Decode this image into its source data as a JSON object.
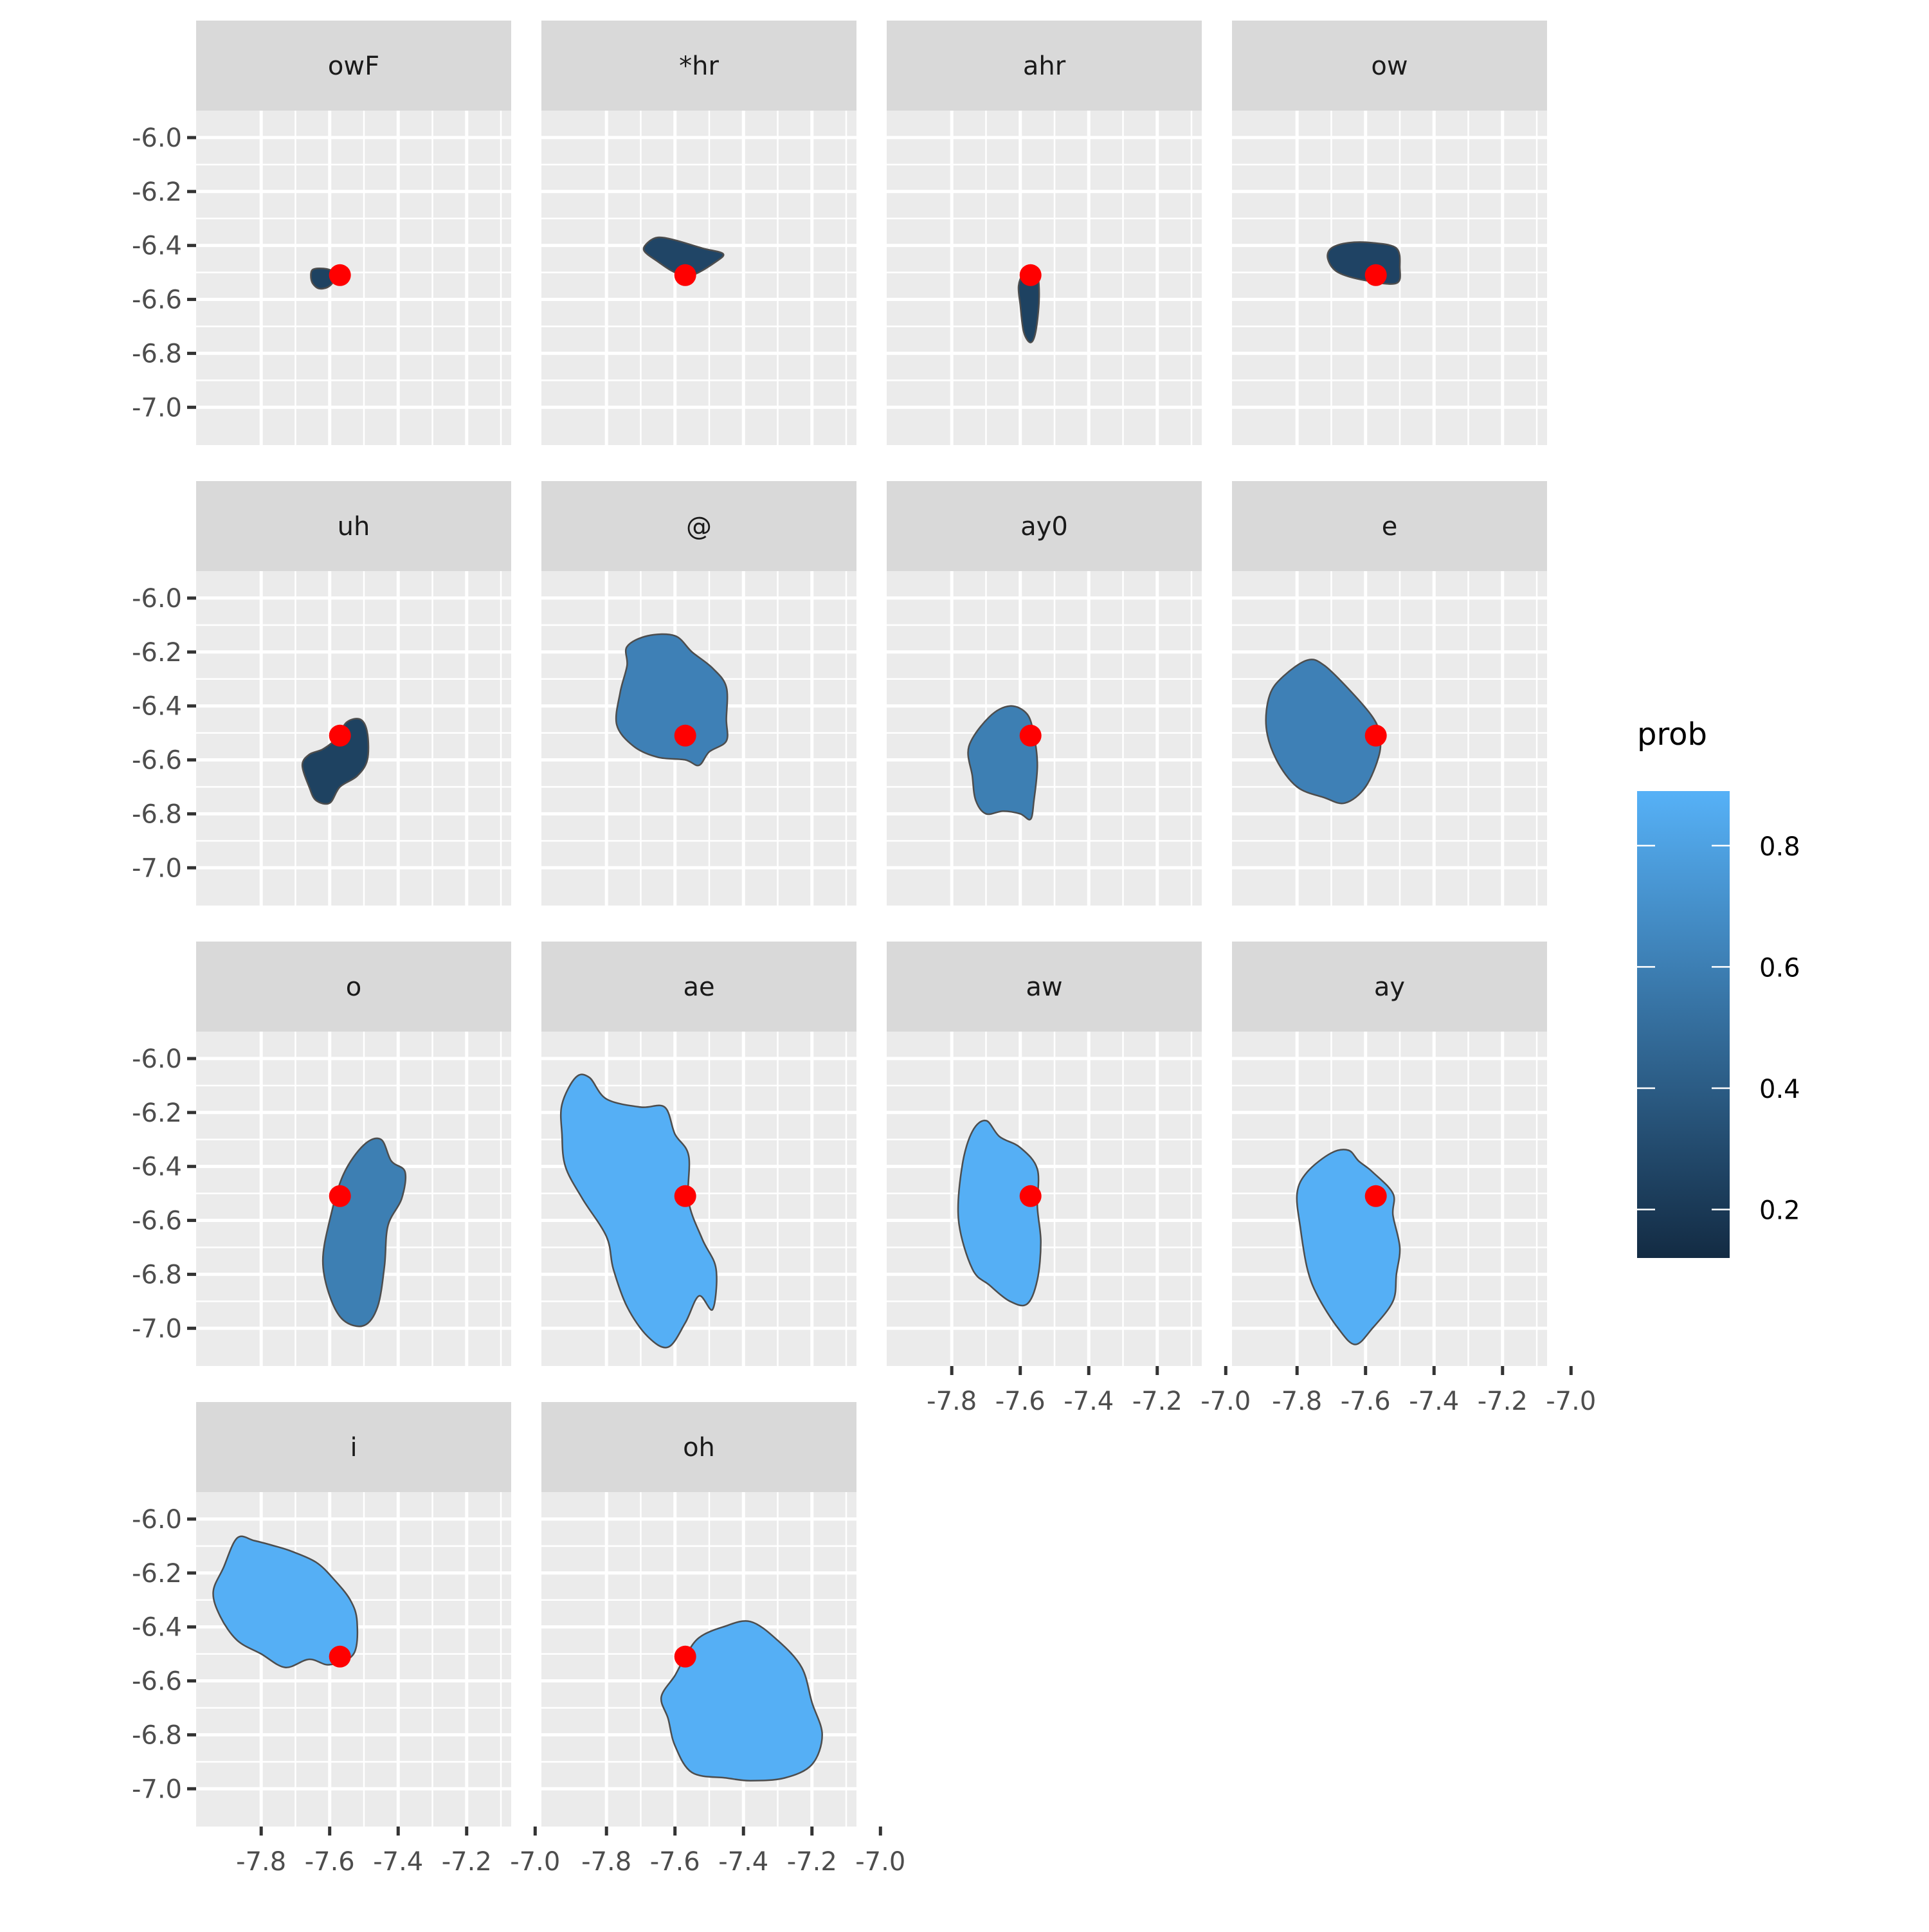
{
  "chart_data": {
    "type": "faceted-contour",
    "facet_titles": [
      "owF",
      "*hr",
      "ahr",
      "ow",
      "uh",
      "@",
      "ay0",
      "e",
      "o",
      "ae",
      "aw",
      "ay",
      "i",
      "oh"
    ],
    "x_ticks": [
      "-7.8",
      "-7.6",
      "-7.4",
      "-7.2",
      "-7.0"
    ],
    "x_tick_values": [
      -7.8,
      -7.6,
      -7.4,
      -7.2,
      -7.0
    ],
    "y_ticks": [
      "-6.0",
      "-6.2",
      "-6.4",
      "-6.6",
      "-6.8",
      "-7.0"
    ],
    "y_tick_values": [
      -6.0,
      -6.2,
      -6.4,
      -6.6,
      -6.8,
      -7.0
    ],
    "xlim": [
      -7.99,
      -7.07
    ],
    "ylim": [
      -7.14,
      -5.9
    ],
    "y_reversed": true,
    "grid": true,
    "legend": {
      "title": "prob",
      "position": "right",
      "ticks": [
        "0.2",
        "0.4",
        "0.6",
        "0.8"
      ],
      "tick_values": [
        0.2,
        0.4,
        0.6,
        0.8
      ],
      "range": [
        0.12,
        0.89
      ],
      "color_low": "#132B43",
      "color_high": "#56B1F7"
    },
    "point": {
      "x": -7.57,
      "y": -6.51,
      "color": "#FF0000"
    },
    "facets": [
      {
        "name": "owF",
        "prob": 0.25,
        "region": [
          [
            -7.65,
            -6.49
          ],
          [
            -7.63,
            -6.485
          ],
          [
            -7.6,
            -6.49
          ],
          [
            -7.58,
            -6.51
          ],
          [
            -7.6,
            -6.55
          ],
          [
            -7.63,
            -6.56
          ],
          [
            -7.65,
            -6.54
          ],
          [
            -7.655,
            -6.51
          ]
        ]
      },
      {
        "name": "*hr",
        "prob": 0.27,
        "region": [
          [
            -7.68,
            -6.39
          ],
          [
            -7.65,
            -6.37
          ],
          [
            -7.6,
            -6.38
          ],
          [
            -7.52,
            -6.41
          ],
          [
            -7.46,
            -6.43
          ],
          [
            -7.48,
            -6.46
          ],
          [
            -7.55,
            -6.51
          ],
          [
            -7.6,
            -6.5
          ],
          [
            -7.65,
            -6.46
          ],
          [
            -7.69,
            -6.42
          ]
        ]
      },
      {
        "name": "ahr",
        "prob": 0.25,
        "region": [
          [
            -7.59,
            -6.5
          ],
          [
            -7.57,
            -6.48
          ],
          [
            -7.55,
            -6.5
          ],
          [
            -7.545,
            -6.6
          ],
          [
            -7.555,
            -6.72
          ],
          [
            -7.57,
            -6.76
          ],
          [
            -7.59,
            -6.72
          ],
          [
            -7.6,
            -6.62
          ],
          [
            -7.605,
            -6.55
          ]
        ]
      },
      {
        "name": "ow",
        "prob": 0.26,
        "region": [
          [
            -7.7,
            -6.41
          ],
          [
            -7.65,
            -6.39
          ],
          [
            -7.58,
            -6.39
          ],
          [
            -7.51,
            -6.41
          ],
          [
            -7.5,
            -6.48
          ],
          [
            -7.51,
            -6.54
          ],
          [
            -7.6,
            -6.53
          ],
          [
            -7.68,
            -6.5
          ],
          [
            -7.71,
            -6.45
          ]
        ]
      },
      {
        "name": "uh",
        "prob": 0.25,
        "region": [
          [
            -7.66,
            -6.58
          ],
          [
            -7.62,
            -6.56
          ],
          [
            -7.58,
            -6.52
          ],
          [
            -7.55,
            -6.46
          ],
          [
            -7.51,
            -6.45
          ],
          [
            -7.49,
            -6.5
          ],
          [
            -7.49,
            -6.6
          ],
          [
            -7.52,
            -6.66
          ],
          [
            -7.57,
            -6.7
          ],
          [
            -7.6,
            -6.76
          ],
          [
            -7.64,
            -6.75
          ],
          [
            -7.66,
            -6.7
          ],
          [
            -7.68,
            -6.62
          ]
        ]
      },
      {
        "name": "@",
        "prob": 0.61,
        "region": [
          [
            -7.74,
            -6.18
          ],
          [
            -7.68,
            -6.14
          ],
          [
            -7.6,
            -6.14
          ],
          [
            -7.55,
            -6.2
          ],
          [
            -7.49,
            -6.26
          ],
          [
            -7.45,
            -6.33
          ],
          [
            -7.45,
            -6.45
          ],
          [
            -7.45,
            -6.53
          ],
          [
            -7.5,
            -6.57
          ],
          [
            -7.53,
            -6.62
          ],
          [
            -7.57,
            -6.6
          ],
          [
            -7.65,
            -6.59
          ],
          [
            -7.72,
            -6.55
          ],
          [
            -7.77,
            -6.47
          ],
          [
            -7.76,
            -6.35
          ],
          [
            -7.74,
            -6.25
          ]
        ]
      },
      {
        "name": "ay0",
        "prob": 0.6,
        "region": [
          [
            -7.75,
            -6.55
          ],
          [
            -7.69,
            -6.44
          ],
          [
            -7.63,
            -6.4
          ],
          [
            -7.58,
            -6.43
          ],
          [
            -7.56,
            -6.51
          ],
          [
            -7.55,
            -6.62
          ],
          [
            -7.56,
            -6.75
          ],
          [
            -7.57,
            -6.82
          ],
          [
            -7.6,
            -6.8
          ],
          [
            -7.65,
            -6.79
          ],
          [
            -7.7,
            -6.8
          ],
          [
            -7.73,
            -6.75
          ],
          [
            -7.74,
            -6.66
          ]
        ]
      },
      {
        "name": "e",
        "prob": 0.61,
        "region": [
          [
            -7.88,
            -6.36
          ],
          [
            -7.84,
            -6.29
          ],
          [
            -7.77,
            -6.23
          ],
          [
            -7.72,
            -6.25
          ],
          [
            -7.64,
            -6.35
          ],
          [
            -7.58,
            -6.44
          ],
          [
            -7.56,
            -6.5
          ],
          [
            -7.56,
            -6.58
          ],
          [
            -7.6,
            -6.7
          ],
          [
            -7.66,
            -6.76
          ],
          [
            -7.72,
            -6.74
          ],
          [
            -7.8,
            -6.7
          ],
          [
            -7.86,
            -6.6
          ],
          [
            -7.89,
            -6.48
          ]
        ]
      },
      {
        "name": "o",
        "prob": 0.6,
        "region": [
          [
            -7.6,
            -6.6
          ],
          [
            -7.56,
            -6.43
          ],
          [
            -7.5,
            -6.32
          ],
          [
            -7.45,
            -6.3
          ],
          [
            -7.42,
            -6.38
          ],
          [
            -7.38,
            -6.42
          ],
          [
            -7.39,
            -6.52
          ],
          [
            -7.43,
            -6.62
          ],
          [
            -7.44,
            -6.77
          ],
          [
            -7.46,
            -6.92
          ],
          [
            -7.5,
            -6.99
          ],
          [
            -7.56,
            -6.97
          ],
          [
            -7.6,
            -6.88
          ],
          [
            -7.62,
            -6.75
          ]
        ]
      },
      {
        "name": "ae",
        "prob": 0.88,
        "region": [
          [
            -7.93,
            -6.17
          ],
          [
            -7.89,
            -6.07
          ],
          [
            -7.85,
            -6.07
          ],
          [
            -7.8,
            -6.15
          ],
          [
            -7.7,
            -6.18
          ],
          [
            -7.63,
            -6.18
          ],
          [
            -7.6,
            -6.28
          ],
          [
            -7.56,
            -6.36
          ],
          [
            -7.56,
            -6.53
          ],
          [
            -7.52,
            -6.67
          ],
          [
            -7.48,
            -6.78
          ],
          [
            -7.49,
            -6.93
          ],
          [
            -7.53,
            -6.88
          ],
          [
            -7.57,
            -6.98
          ],
          [
            -7.62,
            -7.07
          ],
          [
            -7.68,
            -7.03
          ],
          [
            -7.74,
            -6.92
          ],
          [
            -7.78,
            -6.78
          ],
          [
            -7.8,
            -6.66
          ],
          [
            -7.87,
            -6.52
          ],
          [
            -7.92,
            -6.4
          ],
          [
            -7.93,
            -6.28
          ]
        ]
      },
      {
        "name": "aw",
        "prob": 0.88,
        "region": [
          [
            -7.77,
            -6.4
          ],
          [
            -7.74,
            -6.27
          ],
          [
            -7.7,
            -6.23
          ],
          [
            -7.66,
            -6.29
          ],
          [
            -7.6,
            -6.33
          ],
          [
            -7.55,
            -6.41
          ],
          [
            -7.55,
            -6.55
          ],
          [
            -7.54,
            -6.68
          ],
          [
            -7.55,
            -6.82
          ],
          [
            -7.58,
            -6.91
          ],
          [
            -7.63,
            -6.9
          ],
          [
            -7.69,
            -6.84
          ],
          [
            -7.74,
            -6.78
          ],
          [
            -7.78,
            -6.6
          ]
        ]
      },
      {
        "name": "ay",
        "prob": 0.88,
        "region": [
          [
            -7.8,
            -6.5
          ],
          [
            -7.77,
            -6.42
          ],
          [
            -7.7,
            -6.35
          ],
          [
            -7.65,
            -6.34
          ],
          [
            -7.62,
            -6.38
          ],
          [
            -7.58,
            -6.42
          ],
          [
            -7.52,
            -6.5
          ],
          [
            -7.52,
            -6.58
          ],
          [
            -7.5,
            -6.7
          ],
          [
            -7.51,
            -6.8
          ],
          [
            -7.52,
            -6.9
          ],
          [
            -7.58,
            -7.0
          ],
          [
            -7.63,
            -7.06
          ],
          [
            -7.68,
            -7.0
          ],
          [
            -7.74,
            -6.88
          ],
          [
            -7.77,
            -6.78
          ],
          [
            -7.79,
            -6.63
          ]
        ]
      },
      {
        "name": "i",
        "prob": 0.88,
        "region": [
          [
            -7.91,
            -6.18
          ],
          [
            -7.87,
            -6.07
          ],
          [
            -7.82,
            -6.08
          ],
          [
            -7.76,
            -6.1
          ],
          [
            -7.71,
            -6.12
          ],
          [
            -7.64,
            -6.16
          ],
          [
            -7.59,
            -6.22
          ],
          [
            -7.54,
            -6.3
          ],
          [
            -7.52,
            -6.38
          ],
          [
            -7.53,
            -6.5
          ],
          [
            -7.6,
            -6.54
          ],
          [
            -7.66,
            -6.52
          ],
          [
            -7.73,
            -6.55
          ],
          [
            -7.8,
            -6.5
          ],
          [
            -7.87,
            -6.45
          ],
          [
            -7.92,
            -6.36
          ],
          [
            -7.94,
            -6.27
          ]
        ]
      },
      {
        "name": "oh",
        "prob": 0.88,
        "region": [
          [
            -7.6,
            -6.58
          ],
          [
            -7.57,
            -6.51
          ],
          [
            -7.53,
            -6.44
          ],
          [
            -7.46,
            -6.4
          ],
          [
            -7.38,
            -6.38
          ],
          [
            -7.3,
            -6.45
          ],
          [
            -7.23,
            -6.55
          ],
          [
            -7.2,
            -6.68
          ],
          [
            -7.17,
            -6.8
          ],
          [
            -7.2,
            -6.91
          ],
          [
            -7.28,
            -6.96
          ],
          [
            -7.38,
            -6.97
          ],
          [
            -7.45,
            -6.96
          ],
          [
            -7.55,
            -6.94
          ],
          [
            -7.6,
            -6.84
          ],
          [
            -7.62,
            -6.74
          ],
          [
            -7.64,
            -6.66
          ]
        ]
      }
    ]
  }
}
